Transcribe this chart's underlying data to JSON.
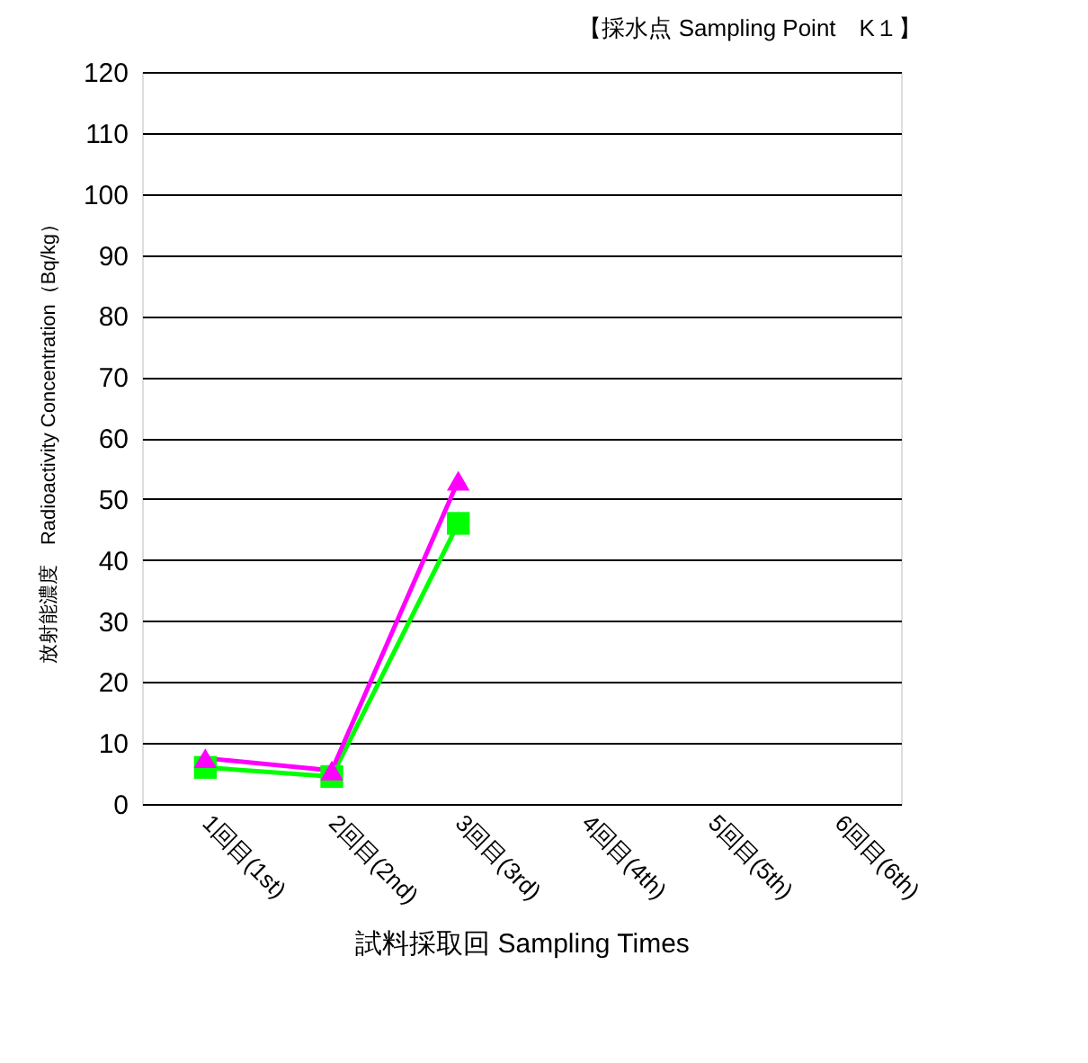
{
  "chart_data": {
    "type": "line",
    "title": "【採水点 Sampling Point　K１】",
    "xlabel": "試料採取回 Sampling Times",
    "ylabel": "放射能濃度　Radioactivity Concentration（Bq/kg）",
    "categories": [
      "1回目(1st)",
      "2回目(2nd)",
      "3回目(3rd)",
      "4回目(4th)",
      "5回目(5th)",
      "6回目(6th)"
    ],
    "series": [
      {
        "color": "#00ff00",
        "marker": "square",
        "values": [
          6,
          4.5,
          46,
          null,
          null,
          null
        ]
      },
      {
        "color": "#ff00ff",
        "marker": "triangle",
        "values": [
          7.5,
          5.5,
          53,
          null,
          null,
          null
        ]
      }
    ],
    "ylim": [
      0,
      120
    ],
    "yticks": [
      0,
      10,
      20,
      30,
      40,
      50,
      60,
      70,
      80,
      90,
      100,
      110,
      120
    ],
    "grid": "y",
    "legend": false
  }
}
